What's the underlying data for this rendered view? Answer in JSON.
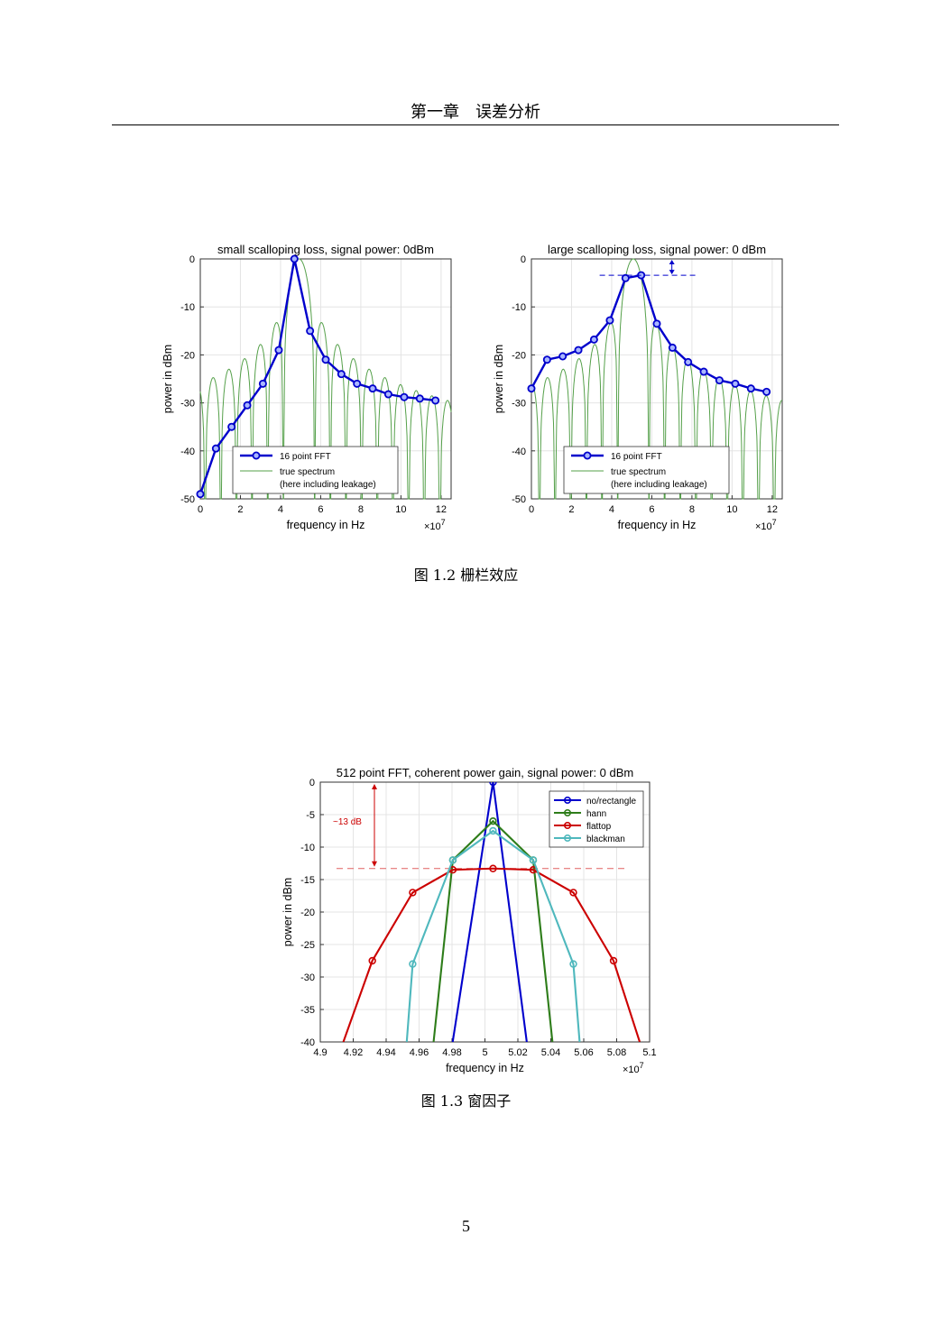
{
  "page": {
    "header": "第一章　误差分析",
    "caption_fig12": "图  1.2  栅栏效应",
    "caption_fig13": "图  1.3  窗因子",
    "page_number": "5"
  },
  "chart_data": [
    {
      "type": "line",
      "title": "small scalloping loss, signal power: 0dBm",
      "xlabel": "frequency in Hz",
      "ylabel": "power in dBm",
      "x_scale_note": "×10^7",
      "xlim": [
        0,
        12.5
      ],
      "ylim": [
        -50,
        0
      ],
      "xticks": [
        0,
        2,
        4,
        6,
        8,
        10,
        12
      ],
      "yticks": [
        0,
        -10,
        -20,
        -30,
        -40,
        -50
      ],
      "grid": true,
      "legend_position": "bottom-right",
      "series": [
        {
          "name": "16 point FFT",
          "color": "#0000cc",
          "markers": true,
          "x": [
            0,
            0.78,
            1.56,
            2.34,
            3.12,
            3.91,
            4.69,
            5.47,
            6.25,
            7.03,
            7.81,
            8.59,
            9.37,
            10.16,
            10.94,
            11.72
          ],
          "y": [
            -49,
            -39.5,
            -35,
            -30.5,
            -26,
            -19,
            0,
            -15,
            -21,
            -24,
            -26,
            -27,
            -28.2,
            -28.8,
            -29.1,
            -29.5
          ]
        },
        {
          "name": "true spectrum\n(here including leakage)",
          "color": "#55a04a",
          "markers": false,
          "peak_x": 4.92,
          "null_spacing": 0.78
        }
      ]
    },
    {
      "type": "line",
      "title": "large scalloping loss, signal power: 0 dBm",
      "xlabel": "frequency in Hz",
      "ylabel": "power in dBm",
      "x_scale_note": "×10^7",
      "xlim": [
        0,
        12.5
      ],
      "ylim": [
        -50,
        0
      ],
      "xticks": [
        0,
        2,
        4,
        6,
        8,
        10,
        12
      ],
      "yticks": [
        0,
        -10,
        -20,
        -30,
        -40,
        -50
      ],
      "grid": true,
      "legend_position": "bottom-right",
      "scalloping_loss_marker_y": -3.4,
      "series": [
        {
          "name": "16 point FFT",
          "color": "#0000cc",
          "markers": true,
          "x": [
            0,
            0.78,
            1.56,
            2.34,
            3.12,
            3.91,
            4.69,
            5.47,
            6.25,
            7.03,
            7.81,
            8.59,
            9.37,
            10.16,
            10.94,
            11.72
          ],
          "y": [
            -27,
            -21,
            -20.3,
            -19,
            -16.8,
            -12.8,
            -4,
            -3.4,
            -13.5,
            -18.5,
            -21.5,
            -23.5,
            -25.3,
            -26,
            -27,
            -27.7
          ]
        },
        {
          "name": "true spectrum\n(here including leakage)",
          "color": "#55a04a",
          "markers": false,
          "peak_x": 5.08,
          "null_spacing": 0.78
        }
      ]
    },
    {
      "type": "line",
      "title": "512 point FFT, coherent power gain, signal power: 0 dBm",
      "xlabel": "frequency in Hz",
      "ylabel": "power in dBm",
      "x_scale_note": "×10^7",
      "xlim": [
        4.9,
        5.1
      ],
      "ylim": [
        -40,
        0
      ],
      "xticks": [
        4.9,
        4.92,
        4.94,
        4.96,
        4.98,
        5,
        5.02,
        5.04,
        5.06,
        5.08,
        5.1
      ],
      "yticks": [
        0,
        -5,
        -10,
        -15,
        -20,
        -25,
        -30,
        -35,
        -40
      ],
      "grid": true,
      "legend_position": "top-right",
      "annotation": {
        "text": "~13 dB",
        "y_top": 0,
        "y_bottom": -13.3,
        "color": "#cc0000"
      },
      "series": [
        {
          "name": "no/rectangle",
          "color": "#0000cc",
          "x": [
            4.9804,
            5.0049,
            5.0254
          ],
          "y": [
            -40,
            0,
            -40
          ],
          "marker_idx": [
            1
          ]
        },
        {
          "name": "hann",
          "color": "#2e7d1a",
          "x": [
            4.9688,
            4.9805,
            5.0049,
            5.0293,
            5.041
          ],
          "y": [
            -40,
            -12,
            -6,
            -12,
            -40
          ],
          "marker_idx": [
            1,
            2,
            3
          ]
        },
        {
          "name": "flattop",
          "color": "#cc0000",
          "x": [
            4.914,
            4.9316,
            4.9561,
            4.9805,
            5.0049,
            5.0293,
            5.0537,
            5.0781,
            5.094
          ],
          "y": [
            -40,
            -27.5,
            -17,
            -13.5,
            -13.3,
            -13.5,
            -17,
            -27.5,
            -40
          ],
          "marker_idx": [
            1,
            2,
            3,
            4,
            5,
            6,
            7
          ]
        },
        {
          "name": "blackman",
          "color": "#4fb8bd",
          "x": [
            4.9525,
            4.9561,
            4.9805,
            5.0049,
            5.0293,
            5.0537,
            5.0575
          ],
          "y": [
            -40,
            -28,
            -12,
            -7.5,
            -12,
            -28,
            -40
          ],
          "marker_idx": [
            1,
            2,
            3,
            4,
            5
          ]
        }
      ]
    }
  ]
}
